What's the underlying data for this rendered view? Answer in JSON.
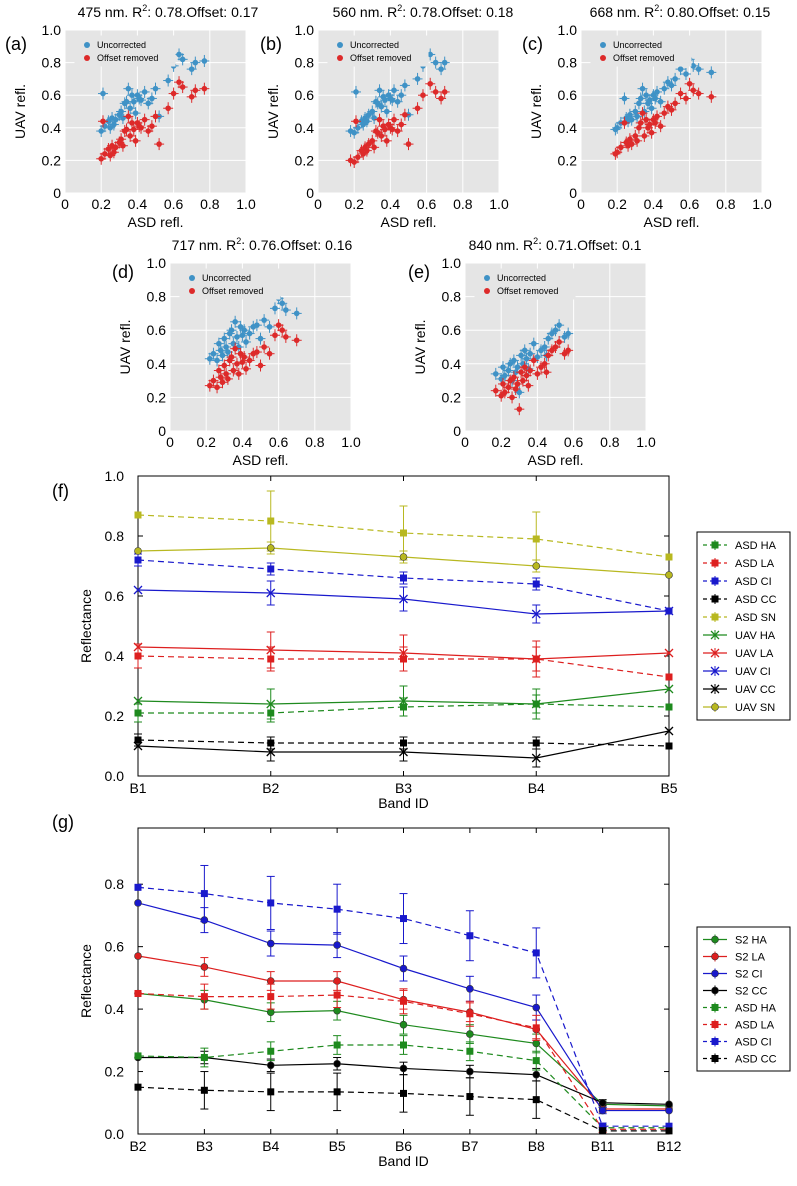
{
  "figure": {
    "scatter_legend": {
      "uncorrected": "Uncorrected",
      "offset_removed": "Offset removed"
    },
    "scatter_xlabel": "ASD  refl.",
    "scatter_ylabel": "UAV refl.",
    "band_xlabel": "Band ID",
    "band_ylabel": "Reflectance"
  },
  "chart_data": [
    {
      "id": "a",
      "panel_label": "(a)",
      "type": "scatter",
      "title_main": "475 nm. R",
      "title_sup": "2",
      "title_rest": ": 0.78.Offset: 0.17",
      "xlim": [
        0,
        1.0
      ],
      "ylim": [
        0,
        1.0
      ],
      "xticks": [
        "0",
        "0.2",
        "0.4",
        "0.6",
        "0.8",
        "1.0"
      ],
      "yticks": [
        "0",
        "0.2",
        "0.4",
        "0.6",
        "0.8",
        "1.0"
      ],
      "colors": {
        "uncorrected": "#3f92c6",
        "offset_removed": "#dd2a2a"
      },
      "offset": 0.17,
      "x": [
        0.2,
        0.21,
        0.22,
        0.24,
        0.25,
        0.26,
        0.27,
        0.28,
        0.3,
        0.31,
        0.32,
        0.33,
        0.34,
        0.35,
        0.36,
        0.37,
        0.38,
        0.39,
        0.4,
        0.41,
        0.42,
        0.44,
        0.46,
        0.48,
        0.5,
        0.52,
        0.57,
        0.6,
        0.63,
        0.65,
        0.7,
        0.72,
        0.77
      ],
      "uncorrected": [
        0.38,
        0.61,
        0.41,
        0.44,
        0.4,
        0.46,
        0.42,
        0.45,
        0.48,
        0.5,
        0.46,
        0.55,
        0.56,
        0.64,
        0.52,
        0.6,
        0.56,
        0.49,
        0.6,
        0.58,
        0.57,
        0.62,
        0.55,
        0.58,
        0.64,
        0.47,
        0.69,
        0.78,
        0.85,
        0.82,
        0.76,
        0.8,
        0.81
      ],
      "offset_removed": [
        0.21,
        0.44,
        0.24,
        0.27,
        0.23,
        0.29,
        0.25,
        0.28,
        0.31,
        0.33,
        0.29,
        0.38,
        0.39,
        0.47,
        0.35,
        0.43,
        0.39,
        0.32,
        0.43,
        0.41,
        0.4,
        0.45,
        0.38,
        0.41,
        0.47,
        0.3,
        0.52,
        0.61,
        0.68,
        0.65,
        0.59,
        0.63,
        0.64
      ]
    },
    {
      "id": "b",
      "panel_label": "(b)",
      "type": "scatter",
      "title_main": "560 nm. R",
      "title_sup": "2",
      "title_rest": ": 0.78.Offset: 0.18",
      "xlim": [
        0,
        1.0
      ],
      "ylim": [
        0,
        1.0
      ],
      "xticks": [
        "0",
        "0.2",
        "0.4",
        "0.6",
        "0.8",
        "1.0"
      ],
      "yticks": [
        "0",
        "0.2",
        "0.4",
        "0.6",
        "0.8",
        "1.0"
      ],
      "colors": {
        "uncorrected": "#3f92c6",
        "offset_removed": "#dd2a2a"
      },
      "offset": 0.18,
      "x": [
        0.18,
        0.2,
        0.21,
        0.22,
        0.24,
        0.25,
        0.26,
        0.27,
        0.28,
        0.3,
        0.31,
        0.32,
        0.33,
        0.34,
        0.35,
        0.36,
        0.37,
        0.38,
        0.39,
        0.4,
        0.41,
        0.42,
        0.44,
        0.46,
        0.48,
        0.5,
        0.55,
        0.58,
        0.62,
        0.65,
        0.68,
        0.7
      ],
      "uncorrected": [
        0.38,
        0.37,
        0.62,
        0.4,
        0.44,
        0.42,
        0.46,
        0.44,
        0.48,
        0.5,
        0.46,
        0.56,
        0.55,
        0.63,
        0.53,
        0.59,
        0.57,
        0.5,
        0.6,
        0.58,
        0.57,
        0.63,
        0.56,
        0.6,
        0.66,
        0.48,
        0.7,
        0.78,
        0.85,
        0.8,
        0.76,
        0.8
      ],
      "offset_removed": [
        0.2,
        0.19,
        0.44,
        0.22,
        0.26,
        0.24,
        0.28,
        0.26,
        0.3,
        0.32,
        0.28,
        0.38,
        0.37,
        0.45,
        0.35,
        0.41,
        0.39,
        0.32,
        0.42,
        0.4,
        0.39,
        0.45,
        0.38,
        0.42,
        0.48,
        0.3,
        0.52,
        0.6,
        0.67,
        0.62,
        0.58,
        0.62
      ]
    },
    {
      "id": "c",
      "panel_label": "(c)",
      "type": "scatter",
      "title_main": "668 nm. R",
      "title_sup": "2",
      "title_rest": ": 0.80.Offset: 0.15",
      "xlim": [
        0,
        1.0
      ],
      "ylim": [
        0,
        1.0
      ],
      "xticks": [
        "0",
        "0.2",
        "0.4",
        "0.6",
        "0.8",
        "1.0"
      ],
      "yticks": [
        "0",
        "0.2",
        "0.4",
        "0.6",
        "0.8",
        "1.0"
      ],
      "colors": {
        "uncorrected": "#3f92c6",
        "offset_removed": "#dd2a2a"
      },
      "offset": 0.15,
      "x": [
        0.19,
        0.2,
        0.22,
        0.24,
        0.25,
        0.26,
        0.27,
        0.28,
        0.3,
        0.31,
        0.32,
        0.33,
        0.34,
        0.35,
        0.36,
        0.37,
        0.38,
        0.39,
        0.4,
        0.41,
        0.42,
        0.44,
        0.46,
        0.48,
        0.5,
        0.52,
        0.55,
        0.58,
        0.6,
        0.62,
        0.65,
        0.72
      ],
      "uncorrected": [
        0.39,
        0.4,
        0.43,
        0.58,
        0.46,
        0.44,
        0.48,
        0.45,
        0.5,
        0.47,
        0.55,
        0.58,
        0.64,
        0.5,
        0.6,
        0.55,
        0.57,
        0.52,
        0.6,
        0.58,
        0.62,
        0.56,
        0.64,
        0.68,
        0.66,
        0.7,
        0.76,
        0.73,
        0.82,
        0.78,
        0.76,
        0.74
      ],
      "offset_removed": [
        0.24,
        0.25,
        0.28,
        0.43,
        0.31,
        0.29,
        0.33,
        0.3,
        0.35,
        0.32,
        0.4,
        0.43,
        0.49,
        0.35,
        0.45,
        0.4,
        0.42,
        0.37,
        0.45,
        0.43,
        0.47,
        0.41,
        0.49,
        0.53,
        0.51,
        0.55,
        0.61,
        0.58,
        0.67,
        0.63,
        0.61,
        0.59
      ]
    },
    {
      "id": "d",
      "panel_label": "(d)",
      "type": "scatter",
      "title_main": "717 nm. R",
      "title_sup": "2",
      "title_rest": ": 0.76.Offset: 0.16",
      "xlim": [
        0,
        1.0
      ],
      "ylim": [
        0,
        1.0
      ],
      "xticks": [
        "0",
        "0.2",
        "0.4",
        "0.6",
        "0.8",
        "1.0"
      ],
      "yticks": [
        "0",
        "0.2",
        "0.4",
        "0.6",
        "0.8",
        "1.0"
      ],
      "colors": {
        "uncorrected": "#3f92c6",
        "offset_removed": "#dd2a2a"
      },
      "offset": 0.16,
      "x": [
        0.22,
        0.24,
        0.26,
        0.27,
        0.28,
        0.29,
        0.3,
        0.31,
        0.32,
        0.33,
        0.34,
        0.35,
        0.36,
        0.37,
        0.38,
        0.39,
        0.4,
        0.41,
        0.42,
        0.44,
        0.46,
        0.48,
        0.5,
        0.52,
        0.55,
        0.58,
        0.6,
        0.62,
        0.64,
        0.7
      ],
      "uncorrected": [
        0.43,
        0.46,
        0.42,
        0.52,
        0.48,
        0.45,
        0.55,
        0.5,
        0.47,
        0.58,
        0.6,
        0.52,
        0.65,
        0.56,
        0.5,
        0.62,
        0.57,
        0.6,
        0.53,
        0.58,
        0.62,
        0.63,
        0.55,
        0.66,
        0.62,
        0.73,
        0.79,
        0.76,
        0.72,
        0.7
      ],
      "offset_removed": [
        0.27,
        0.3,
        0.26,
        0.36,
        0.32,
        0.29,
        0.39,
        0.34,
        0.31,
        0.42,
        0.44,
        0.36,
        0.49,
        0.4,
        0.34,
        0.46,
        0.41,
        0.44,
        0.37,
        0.42,
        0.46,
        0.47,
        0.39,
        0.5,
        0.46,
        0.57,
        0.63,
        0.6,
        0.56,
        0.54
      ]
    },
    {
      "id": "e",
      "panel_label": "(e)",
      "type": "scatter",
      "title_main": "840 nm. R",
      "title_sup": "2",
      "title_rest": ": 0.71.Offset: 0.1",
      "xlim": [
        0,
        1.0
      ],
      "ylim": [
        0,
        1.0
      ],
      "xticks": [
        "0",
        "0.2",
        "0.4",
        "0.6",
        "0.8",
        "1.0"
      ],
      "yticks": [
        "0",
        "0.2",
        "0.4",
        "0.6",
        "0.8",
        "1.0"
      ],
      "colors": {
        "uncorrected": "#3f92c6",
        "offset_removed": "#dd2a2a"
      },
      "offset": 0.1,
      "x": [
        0.17,
        0.2,
        0.21,
        0.22,
        0.24,
        0.25,
        0.26,
        0.27,
        0.28,
        0.29,
        0.3,
        0.31,
        0.32,
        0.33,
        0.34,
        0.35,
        0.36,
        0.38,
        0.4,
        0.42,
        0.44,
        0.45,
        0.46,
        0.48,
        0.5,
        0.52,
        0.55,
        0.57
      ],
      "uncorrected": [
        0.34,
        0.31,
        0.38,
        0.33,
        0.36,
        0.4,
        0.3,
        0.42,
        0.35,
        0.38,
        0.23,
        0.45,
        0.4,
        0.48,
        0.43,
        0.37,
        0.46,
        0.52,
        0.44,
        0.48,
        0.5,
        0.45,
        0.55,
        0.58,
        0.6,
        0.63,
        0.56,
        0.58
      ],
      "offset_removed": [
        0.24,
        0.21,
        0.28,
        0.23,
        0.26,
        0.3,
        0.2,
        0.32,
        0.25,
        0.28,
        0.13,
        0.35,
        0.3,
        0.38,
        0.33,
        0.27,
        0.36,
        0.42,
        0.34,
        0.38,
        0.4,
        0.35,
        0.45,
        0.48,
        0.5,
        0.53,
        0.46,
        0.48
      ]
    },
    {
      "id": "f",
      "panel_label": "(f)",
      "type": "line",
      "categories": [
        "B1",
        "B2",
        "B3",
        "B4",
        "B5"
      ],
      "xlabel": "Band ID",
      "ylabel": "Reflectance",
      "ylim": [
        0,
        1.0
      ],
      "yticks": [
        "0.0",
        "0.2",
        "0.4",
        "0.6",
        "0.8",
        "1.0"
      ],
      "series": [
        {
          "name": "ASD HA",
          "color": "#1e8a1e",
          "dashed": true,
          "marker": "square",
          "values": [
            0.21,
            0.21,
            0.23,
            0.24,
            0.23
          ],
          "err": [
            0.03,
            0.03,
            0.03,
            0.03,
            0.0
          ]
        },
        {
          "name": "ASD LA",
          "color": "#dd1f1f",
          "dashed": true,
          "marker": "square",
          "values": [
            0.4,
            0.39,
            0.39,
            0.39,
            0.33
          ],
          "err": [
            0.04,
            0.04,
            0.04,
            0.04,
            0.0
          ]
        },
        {
          "name": "ASD CI",
          "color": "#1919cc",
          "dashed": true,
          "marker": "square",
          "values": [
            0.72,
            0.69,
            0.66,
            0.64,
            0.55
          ],
          "err": [
            0.02,
            0.02,
            0.02,
            0.02,
            0.0
          ]
        },
        {
          "name": "ASD CC",
          "color": "#000000",
          "dashed": true,
          "marker": "square",
          "values": [
            0.12,
            0.11,
            0.11,
            0.11,
            0.1
          ],
          "err": [
            0.02,
            0.02,
            0.02,
            0.02,
            0.0
          ]
        },
        {
          "name": "ASD SN",
          "color": "#b8b820",
          "dashed": true,
          "marker": "square",
          "values": [
            0.87,
            0.85,
            0.81,
            0.79,
            0.73
          ],
          "err": [
            0.0,
            0.1,
            0.09,
            0.09,
            0.0
          ]
        },
        {
          "name": "UAV HA",
          "color": "#1e8a1e",
          "dashed": false,
          "marker": "x",
          "values": [
            0.25,
            0.24,
            0.25,
            0.24,
            0.29
          ],
          "err": [
            0.0,
            0.05,
            0.05,
            0.05,
            0.0
          ]
        },
        {
          "name": "UAV LA",
          "color": "#dd1f1f",
          "dashed": false,
          "marker": "x",
          "values": [
            0.43,
            0.42,
            0.41,
            0.39,
            0.41
          ],
          "err": [
            0.0,
            0.06,
            0.06,
            0.06,
            0.0
          ]
        },
        {
          "name": "UAV CI",
          "color": "#1919cc",
          "dashed": false,
          "marker": "x",
          "values": [
            0.62,
            0.61,
            0.59,
            0.54,
            0.55
          ],
          "err": [
            0.0,
            0.04,
            0.04,
            0.03,
            0.0
          ]
        },
        {
          "name": "UAV CC",
          "color": "#000000",
          "dashed": false,
          "marker": "x",
          "values": [
            0.1,
            0.08,
            0.08,
            0.06,
            0.15
          ],
          "err": [
            0.0,
            0.03,
            0.03,
            0.03,
            0.0
          ]
        },
        {
          "name": "UAV SN",
          "color": "#b8b820",
          "dashed": false,
          "marker": "circle",
          "values": [
            0.75,
            0.76,
            0.73,
            0.7,
            0.67
          ],
          "err": [
            0.0,
            0.02,
            0.02,
            0.02,
            0.0
          ]
        }
      ]
    },
    {
      "id": "g",
      "panel_label": "(g)",
      "type": "line",
      "categories": [
        "B2",
        "B3",
        "B4",
        "B5",
        "B6",
        "B7",
        "B8",
        "B11",
        "B12"
      ],
      "xlabel": "Band ID",
      "ylabel": "Reflectance",
      "ylim": [
        0,
        0.98
      ],
      "yticks": [
        "0.0",
        "0.2",
        "0.4",
        "0.6",
        "0.8"
      ],
      "series": [
        {
          "name": "S2 HA",
          "color": "#1e8a1e",
          "dashed": false,
          "marker": "circle",
          "values": [
            0.45,
            0.43,
            0.39,
            0.395,
            0.35,
            0.32,
            0.29,
            0.095,
            0.09
          ],
          "err": [
            0.0,
            0.03,
            0.03,
            0.03,
            0.03,
            0.03,
            0.03,
            0.01,
            0.0
          ]
        },
        {
          "name": "S2 LA",
          "color": "#dd1f1f",
          "dashed": false,
          "marker": "circle",
          "values": [
            0.57,
            0.535,
            0.49,
            0.49,
            0.43,
            0.39,
            0.335,
            0.08,
            0.08
          ],
          "err": [
            0.0,
            0.03,
            0.03,
            0.03,
            0.03,
            0.03,
            0.03,
            0.01,
            0.0
          ]
        },
        {
          "name": "S2 CI",
          "color": "#1919cc",
          "dashed": false,
          "marker": "circle",
          "values": [
            0.74,
            0.685,
            0.61,
            0.605,
            0.53,
            0.465,
            0.405,
            0.075,
            0.075
          ],
          "err": [
            0.0,
            0.04,
            0.04,
            0.04,
            0.04,
            0.04,
            0.04,
            0.01,
            0.0
          ]
        },
        {
          "name": "S2 CC",
          "color": "#000000",
          "dashed": false,
          "marker": "circle",
          "values": [
            0.245,
            0.245,
            0.22,
            0.225,
            0.21,
            0.2,
            0.19,
            0.1,
            0.095
          ],
          "err": [
            0.0,
            0.02,
            0.02,
            0.02,
            0.02,
            0.02,
            0.02,
            0.01,
            0.0
          ]
        },
        {
          "name": "ASD HA",
          "color": "#1e8a1e",
          "dashed": true,
          "marker": "square",
          "values": [
            0.25,
            0.245,
            0.265,
            0.285,
            0.285,
            0.265,
            0.235,
            0.02,
            0.02
          ],
          "err": [
            0.0,
            0.03,
            0.03,
            0.03,
            0.03,
            0.03,
            0.03,
            0.01,
            0.0
          ]
        },
        {
          "name": "ASD LA",
          "color": "#dd1f1f",
          "dashed": true,
          "marker": "square",
          "values": [
            0.45,
            0.44,
            0.44,
            0.445,
            0.425,
            0.385,
            0.34,
            0.015,
            0.015
          ],
          "err": [
            0.0,
            0.04,
            0.04,
            0.04,
            0.04,
            0.04,
            0.04,
            0.01,
            0.0
          ]
        },
        {
          "name": "ASD CI",
          "color": "#1919cc",
          "dashed": true,
          "marker": "square",
          "values": [
            0.79,
            0.77,
            0.74,
            0.72,
            0.69,
            0.635,
            0.58,
            0.025,
            0.025
          ],
          "err": [
            0.0,
            0.09,
            0.085,
            0.08,
            0.08,
            0.08,
            0.08,
            0.01,
            0.0
          ]
        },
        {
          "name": "ASD CC",
          "color": "#000000",
          "dashed": true,
          "marker": "square",
          "values": [
            0.15,
            0.14,
            0.135,
            0.135,
            0.13,
            0.12,
            0.11,
            0.01,
            0.01
          ],
          "err": [
            0.0,
            0.06,
            0.06,
            0.06,
            0.06,
            0.06,
            0.06,
            0.01,
            0.0
          ]
        }
      ]
    }
  ]
}
